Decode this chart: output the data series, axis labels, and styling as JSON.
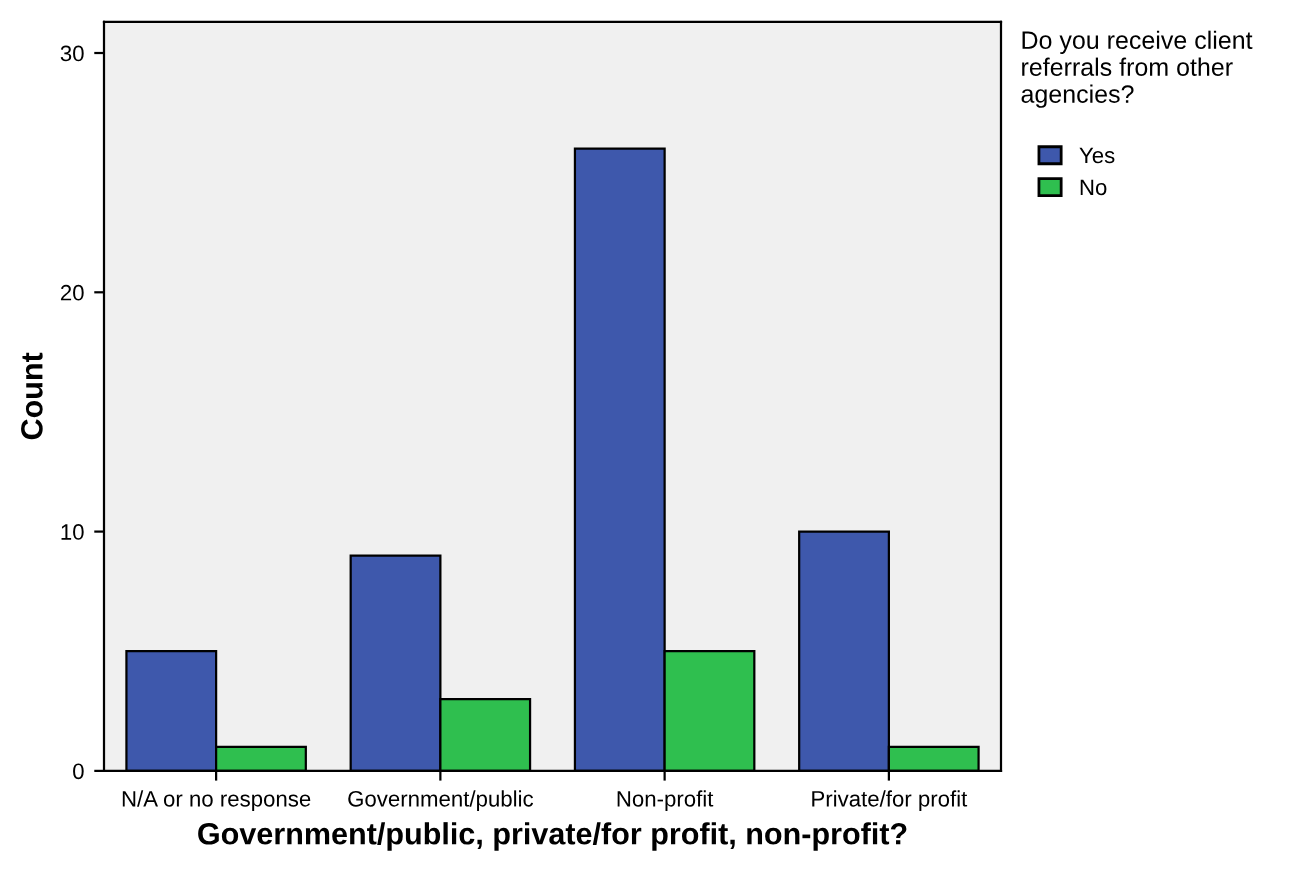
{
  "chart_data": {
    "type": "bar",
    "xlabel": "Government/public, private/for profit, non-profit?",
    "ylabel": "Count",
    "legend_title": "Do you receive client referrals from other agencies?",
    "categories": [
      "N/A or no response",
      "Government/public",
      "Non-profit",
      "Private/for profit"
    ],
    "series": [
      {
        "name": "Yes",
        "color": "#3e58ac",
        "values": [
          5,
          9,
          26,
          10
        ]
      },
      {
        "name": "No",
        "color": "#2fbf4f",
        "values": [
          1,
          3,
          5,
          1
        ]
      }
    ],
    "ylim": [
      0,
      31.3
    ],
    "yticks": [
      0,
      10,
      20,
      30
    ],
    "grid": false,
    "legend": "top right"
  }
}
